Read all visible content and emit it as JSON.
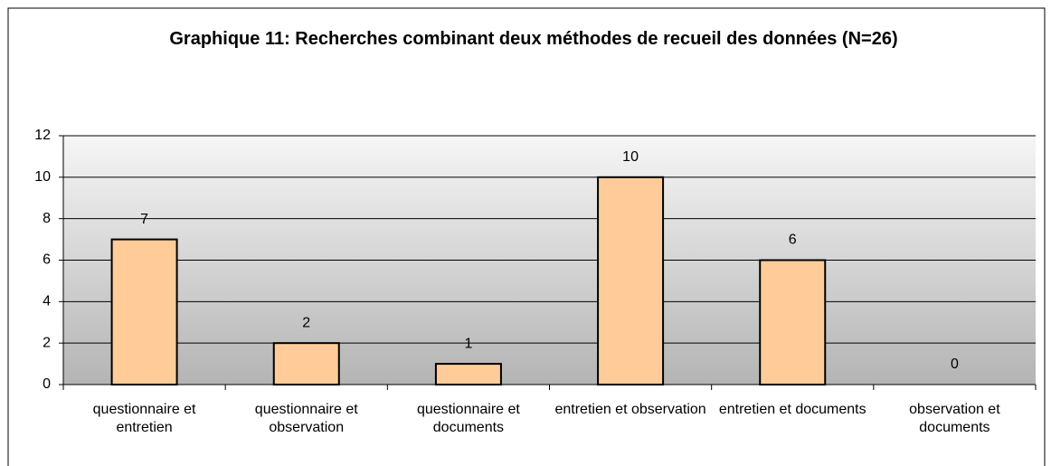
{
  "chart_data": {
    "type": "bar",
    "title": "Graphique 11: Recherches combinant deux méthodes de recueil des données (N=26)",
    "categories": [
      "questionnaire et entretien",
      "questionnaire et observation",
      "questionnaire et documents",
      "entretien et observation",
      "entretien et documents",
      "observation et documents"
    ],
    "values": [
      7,
      2,
      1,
      10,
      6,
      0
    ],
    "color": "#ffcc99",
    "ylim": [
      0,
      12
    ],
    "yticks": [
      0,
      2,
      4,
      6,
      8,
      10,
      12
    ],
    "grid": true
  }
}
